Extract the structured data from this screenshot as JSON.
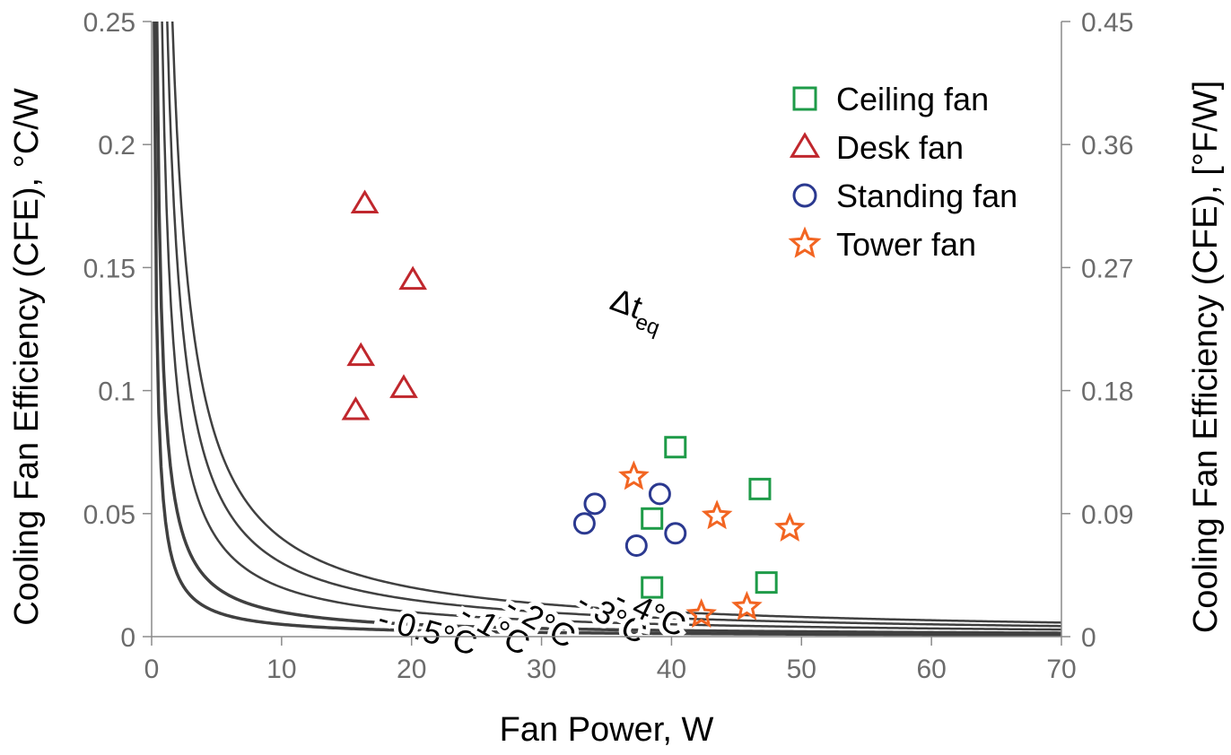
{
  "chart_data": {
    "type": "scatter",
    "title": "",
    "xlabel": "Fan Power, W",
    "ylabel": "Cooling Fan Efficiency (CFE), °C/W",
    "y2label": "Cooling Fan Efficiency (CFE), [°F/W]",
    "xlim": [
      0,
      70
    ],
    "ylim": [
      0,
      0.25
    ],
    "y2lim": [
      0,
      0.45
    ],
    "x_ticks": [
      "0",
      "10",
      "20",
      "30",
      "40",
      "50",
      "60",
      "70"
    ],
    "y_ticks": [
      "0",
      "0.05",
      "0.1",
      "0.15",
      "0.2",
      "0.25"
    ],
    "y2_ticks": [
      "0",
      "0.09",
      "0.18",
      "0.27",
      "0.36",
      "0.45"
    ],
    "grid": false,
    "legend_position": "top-right",
    "curve_group_label": {
      "symbol": "Δt",
      "subscript": "eq"
    },
    "curves": [
      {
        "label": "- 0.5°C",
        "dt": 0.5
      },
      {
        "label": "- 1°C",
        "dt": 1
      },
      {
        "label": "- 2°C",
        "dt": 2
      },
      {
        "label": "- 3°C",
        "dt": 3
      },
      {
        "label": "- 4°C",
        "dt": 4
      }
    ],
    "series": [
      {
        "name": "Ceiling fan",
        "marker": "square",
        "color": "#1e9b48",
        "points": [
          [
            40.3,
            0.077
          ],
          [
            46.8,
            0.06
          ],
          [
            38.5,
            0.048
          ],
          [
            38.5,
            0.02
          ],
          [
            47.3,
            0.022
          ]
        ]
      },
      {
        "name": "Desk fan",
        "marker": "triangle",
        "color": "#c0272d",
        "points": [
          [
            16.4,
            0.176
          ],
          [
            20.1,
            0.145
          ],
          [
            16.1,
            0.114
          ],
          [
            19.4,
            0.101
          ],
          [
            15.7,
            0.092
          ]
        ]
      },
      {
        "name": "Standing fan",
        "marker": "circle",
        "color": "#2b3990",
        "points": [
          [
            34.1,
            0.054
          ],
          [
            39.1,
            0.058
          ],
          [
            33.3,
            0.046
          ],
          [
            37.3,
            0.037
          ],
          [
            40.3,
            0.042
          ]
        ]
      },
      {
        "name": "Tower fan",
        "marker": "star",
        "color": "#f26522",
        "points": [
          [
            37.1,
            0.065
          ],
          [
            43.5,
            0.049
          ],
          [
            49.1,
            0.044
          ],
          [
            42.3,
            0.009
          ],
          [
            45.8,
            0.012
          ]
        ]
      }
    ]
  }
}
